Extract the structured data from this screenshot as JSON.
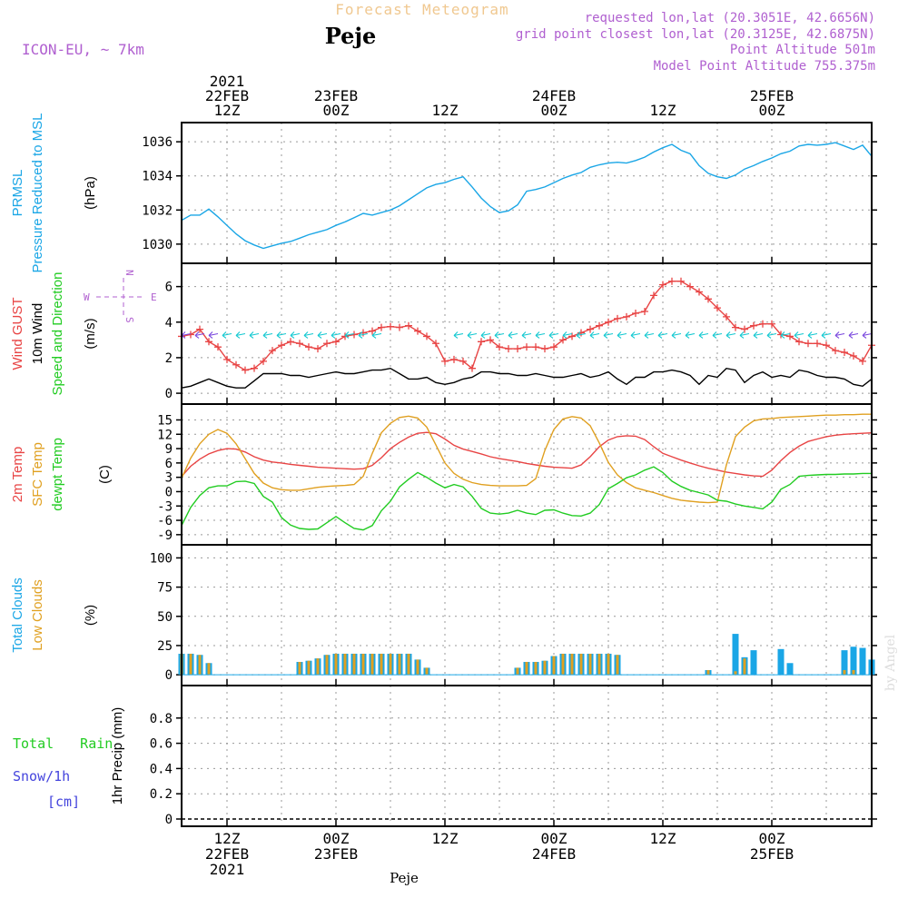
{
  "header": {
    "title": "Forecast Meteogram",
    "location": "Peje",
    "model": "ICON-EU, ~ 7km",
    "requested": "requested lon,lat (20.3051E, 42.6656N)",
    "gridpoint": "grid point closest lon,lat (20.3125E, 42.6875N)",
    "altitude": "Point Altitude 501m",
    "model_altitude": "Model Point Altitude 755.375m",
    "credit": "by Angel",
    "footer_location": "Peje"
  },
  "colors": {
    "pressure": "#1aa6e6",
    "gust": "#e84444",
    "wind": "#000000",
    "wind_arrows": "#10c8d0",
    "temp2m": "#e84444",
    "sfc": "#e0a020",
    "dewpt": "#22cc22",
    "total_clouds": "#1aa6e6",
    "low_clouds": "#e0a020",
    "rain": "#22cc22",
    "snow": "#4444dd",
    "title": "#f0c890",
    "info": "#b060d0"
  },
  "time_axis": {
    "top": [
      {
        "hour": 12,
        "lines": [
          "2021",
          "22FEB",
          "12Z"
        ]
      },
      {
        "hour": 24,
        "lines": [
          "23FEB",
          "00Z"
        ]
      },
      {
        "hour": 36,
        "lines": [
          "12Z"
        ]
      },
      {
        "hour": 48,
        "lines": [
          "24FEB",
          "00Z"
        ]
      },
      {
        "hour": 60,
        "lines": [
          "12Z"
        ]
      },
      {
        "hour": 72,
        "lines": [
          "25FEB",
          "00Z"
        ]
      }
    ],
    "bottom": [
      {
        "hour": 12,
        "lines": [
          "12Z",
          "22FEB",
          "2021"
        ]
      },
      {
        "hour": 24,
        "lines": [
          "00Z",
          "23FEB"
        ]
      },
      {
        "hour": 36,
        "lines": [
          "12Z"
        ]
      },
      {
        "hour": 48,
        "lines": [
          "00Z",
          "24FEB"
        ]
      },
      {
        "hour": 60,
        "lines": [
          "12Z"
        ]
      },
      {
        "hour": 72,
        "lines": [
          "00Z",
          "25FEB"
        ]
      }
    ]
  },
  "compass": {
    "n": "N",
    "s": "S",
    "e": "E",
    "w": "W"
  },
  "chart_data": [
    {
      "type": "line",
      "ylabels": [
        "PRMSL",
        "Pressure Reduced to MSL"
      ],
      "unit": "(hPa)",
      "ylim": [
        1029.3,
        1036.7
      ],
      "yticks": [
        1030,
        1032,
        1034,
        1036
      ],
      "grid": true,
      "x": [
        7,
        8,
        9,
        10,
        11,
        12,
        13,
        14,
        15,
        16,
        17,
        18,
        19,
        20,
        21,
        22,
        23,
        24,
        25,
        26,
        27,
        28,
        29,
        30,
        31,
        32,
        33,
        34,
        35,
        36,
        37,
        38,
        39,
        40,
        41,
        42,
        43,
        44,
        45,
        46,
        47,
        48,
        49,
        50,
        51,
        52,
        53,
        54,
        55,
        56,
        57,
        58,
        59,
        60,
        61,
        62,
        63,
        64,
        65,
        66,
        67,
        68,
        69,
        70,
        71,
        72,
        73,
        74,
        75,
        76,
        77,
        78,
        79,
        80,
        81,
        82,
        83
      ],
      "series": [
        {
          "name": "",
          "values": [
            1031.4,
            1031.7,
            1031.7,
            1032.05,
            1031.6,
            1031.1,
            1030.6,
            1030.2,
            1029.95,
            1029.75,
            1029.9,
            1030.05,
            1030.15,
            1030.35,
            1030.55,
            1030.7,
            1030.85,
            1031.1,
            1031.3,
            1031.55,
            1031.8,
            1031.7,
            1031.85,
            1032.0,
            1032.25,
            1032.6,
            1032.95,
            1033.3,
            1033.5,
            1033.6,
            1033.8,
            1033.95,
            1033.35,
            1032.7,
            1032.2,
            1031.85,
            1031.95,
            1032.3,
            1033.1,
            1033.2,
            1033.35,
            1033.6,
            1033.85,
            1034.05,
            1034.2,
            1034.5,
            1034.65,
            1034.75,
            1034.8,
            1034.75,
            1034.9,
            1035.1,
            1035.4,
            1035.65,
            1035.85,
            1035.5,
            1035.3,
            1034.6,
            1034.15,
            1033.95,
            1033.85,
            1034.05,
            1034.4,
            1034.6,
            1034.85,
            1035.05,
            1035.3,
            1035.45,
            1035.75,
            1035.85,
            1035.8,
            1035.85,
            1035.95,
            1035.75,
            1035.55,
            1035.8,
            1035.15
          ]
        }
      ]
    },
    {
      "type": "line",
      "ylabels": [
        "Wind GUST",
        "10m Wind",
        "Speed and Direction"
      ],
      "unit": "(m/s)",
      "ylim": [
        -0.2,
        6.9
      ],
      "yticks": [
        0,
        2,
        4,
        6
      ],
      "grid": true,
      "x": [
        7,
        8,
        9,
        10,
        11,
        12,
        13,
        14,
        15,
        16,
        17,
        18,
        19,
        20,
        21,
        22,
        23,
        24,
        25,
        26,
        27,
        28,
        29,
        30,
        31,
        32,
        33,
        34,
        35,
        36,
        37,
        38,
        39,
        40,
        41,
        42,
        43,
        44,
        45,
        46,
        47,
        48,
        49,
        50,
        51,
        52,
        53,
        54,
        55,
        56,
        57,
        58,
        59,
        60,
        61,
        62,
        63,
        64,
        65,
        66,
        67,
        68,
        69,
        70,
        71,
        72,
        73,
        74,
        75,
        76,
        77,
        78,
        79,
        80,
        81,
        82,
        83
      ],
      "series": [
        {
          "name": "Wind GUST",
          "values": [
            3.2,
            3.3,
            3.6,
            2.9,
            2.6,
            1.9,
            1.6,
            1.3,
            1.4,
            1.8,
            2.4,
            2.7,
            2.9,
            2.8,
            2.6,
            2.5,
            2.8,
            2.9,
            3.2,
            3.3,
            3.4,
            3.5,
            3.7,
            3.75,
            3.7,
            3.8,
            3.5,
            3.2,
            2.8,
            1.8,
            1.9,
            1.8,
            1.4,
            2.9,
            3.0,
            2.6,
            2.5,
            2.5,
            2.6,
            2.6,
            2.5,
            2.6,
            3.0,
            3.2,
            3.4,
            3.6,
            3.8,
            4.0,
            4.2,
            4.3,
            4.5,
            4.6,
            5.5,
            6.1,
            6.3,
            6.3,
            6.0,
            5.7,
            5.3,
            4.8,
            4.3,
            3.7,
            3.6,
            3.8,
            3.9,
            3.9,
            3.3,
            3.2,
            2.9,
            2.8,
            2.8,
            2.7,
            2.4,
            2.3,
            2.1,
            1.8,
            2.7
          ]
        },
        {
          "name": "10m Wind",
          "values": [
            0.3,
            0.4,
            0.6,
            0.8,
            0.6,
            0.4,
            0.3,
            0.3,
            0.7,
            1.1,
            1.1,
            1.1,
            1.0,
            1.0,
            0.9,
            1.0,
            1.1,
            1.2,
            1.1,
            1.1,
            1.2,
            1.3,
            1.3,
            1.4,
            1.1,
            0.8,
            0.8,
            0.9,
            0.6,
            0.5,
            0.6,
            0.8,
            0.9,
            1.2,
            1.2,
            1.1,
            1.1,
            1.0,
            1.0,
            1.1,
            1.0,
            0.9,
            0.9,
            1.0,
            1.1,
            0.9,
            1.0,
            1.2,
            0.8,
            0.5,
            0.9,
            0.9,
            1.2,
            1.2,
            1.3,
            1.2,
            1.0,
            0.5,
            1.0,
            0.9,
            1.4,
            1.3,
            0.6,
            1.0,
            1.2,
            0.9,
            1.0,
            0.9,
            1.3,
            1.2,
            1.0,
            0.9,
            0.9,
            0.8,
            0.5,
            0.4,
            0.8
          ]
        }
      ]
    },
    {
      "type": "line",
      "ylabels": [
        "2m Temp",
        "SFC Temp",
        "dewpt Temp"
      ],
      "unit": "(C)",
      "ylim": [
        -9.6,
        16.8
      ],
      "yticks": [
        -9,
        -6,
        -3,
        0,
        3,
        6,
        9,
        12,
        15
      ],
      "grid": true,
      "x": [
        7,
        8,
        9,
        10,
        11,
        12,
        13,
        14,
        15,
        16,
        17,
        18,
        19,
        20,
        21,
        22,
        23,
        24,
        25,
        26,
        27,
        28,
        29,
        30,
        31,
        32,
        33,
        34,
        35,
        36,
        37,
        38,
        39,
        40,
        41,
        42,
        43,
        44,
        45,
        46,
        47,
        48,
        49,
        50,
        51,
        52,
        53,
        54,
        55,
        56,
        57,
        58,
        59,
        60,
        61,
        62,
        63,
        64,
        65,
        66,
        67,
        68,
        69,
        70,
        71,
        72,
        73,
        74,
        75,
        76,
        77,
        78,
        79,
        80,
        81,
        82,
        83
      ],
      "series": [
        {
          "name": "2m Temp",
          "values": [
            3.2,
            5.3,
            6.8,
            7.9,
            8.6,
            9.0,
            8.9,
            8.3,
            7.3,
            6.6,
            6.2,
            6.0,
            5.7,
            5.5,
            5.3,
            5.1,
            5.0,
            4.9,
            4.8,
            4.7,
            4.8,
            5.5,
            7.1,
            9.0,
            10.3,
            11.4,
            12.2,
            12.4,
            12.1,
            11.0,
            9.7,
            8.9,
            8.4,
            7.9,
            7.3,
            6.9,
            6.6,
            6.3,
            5.9,
            5.6,
            5.3,
            5.1,
            5.0,
            4.9,
            5.6,
            7.3,
            9.4,
            10.8,
            11.5,
            11.7,
            11.6,
            10.9,
            9.4,
            8.0,
            7.3,
            6.6,
            6.0,
            5.4,
            4.9,
            4.5,
            4.1,
            3.8,
            3.5,
            3.3,
            3.2,
            4.5,
            6.5,
            8.2,
            9.5,
            10.5,
            11.0,
            11.5,
            11.8,
            12.0,
            12.1,
            12.2,
            12.3
          ]
        },
        {
          "name": "SFC Temp",
          "values": [
            2.8,
            7.0,
            10.0,
            12.0,
            13.0,
            12.2,
            10.0,
            6.9,
            3.8,
            1.8,
            0.8,
            0.4,
            0.3,
            0.3,
            0.6,
            0.9,
            1.1,
            1.2,
            1.3,
            1.5,
            3.2,
            8.0,
            12.3,
            14.3,
            15.5,
            15.8,
            15.4,
            13.5,
            9.8,
            6.0,
            3.8,
            2.6,
            1.9,
            1.5,
            1.3,
            1.2,
            1.2,
            1.2,
            1.3,
            2.7,
            8.6,
            13.0,
            15.2,
            15.7,
            15.4,
            13.8,
            10.2,
            6.1,
            3.5,
            1.9,
            0.8,
            0.3,
            -0.2,
            -0.8,
            -1.4,
            -1.8,
            -2.0,
            -2.2,
            -2.3,
            -2.2,
            5.6,
            11.5,
            13.5,
            14.8,
            15.2,
            15.3,
            15.5,
            15.6,
            15.7,
            15.8,
            15.9,
            16.0,
            16.0,
            16.1,
            16.1,
            16.2,
            16.2
          ]
        },
        {
          "name": "dewpt Temp",
          "values": [
            -7.1,
            -3.3,
            -0.8,
            0.8,
            1.2,
            1.2,
            2.1,
            2.2,
            1.7,
            -1.0,
            -2.2,
            -5.4,
            -7.0,
            -7.7,
            -7.9,
            -7.8,
            -6.5,
            -5.2,
            -6.5,
            -7.7,
            -8.0,
            -7.1,
            -4.0,
            -2.0,
            1.0,
            2.6,
            4.0,
            3.0,
            1.8,
            0.8,
            1.5,
            1.0,
            -1.0,
            -3.5,
            -4.5,
            -4.7,
            -4.5,
            -3.9,
            -4.5,
            -4.8,
            -3.9,
            -3.8,
            -4.5,
            -5.0,
            -5.1,
            -4.5,
            -2.7,
            0.6,
            1.7,
            2.9,
            3.5,
            4.5,
            5.2,
            4.0,
            2.2,
            1.1,
            0.3,
            -0.2,
            -0.7,
            -1.8,
            -2.0,
            -2.6,
            -3.0,
            -3.3,
            -3.6,
            -2.2,
            0.5,
            1.5,
            3.2,
            3.4,
            3.5,
            3.6,
            3.6,
            3.7,
            3.7,
            3.8,
            3.8
          ]
        }
      ]
    },
    {
      "type": "bar",
      "ylabels": [
        "Total Clouds",
        "Low Clouds"
      ],
      "unit": "(%)",
      "ylim": [
        -3,
        105
      ],
      "yticks": [
        0,
        25,
        50,
        75,
        100
      ],
      "grid": true,
      "x": [
        7,
        8,
        9,
        10,
        11,
        12,
        13,
        14,
        15,
        16,
        17,
        18,
        19,
        20,
        21,
        22,
        23,
        24,
        25,
        26,
        27,
        28,
        29,
        30,
        31,
        32,
        33,
        34,
        35,
        36,
        37,
        38,
        39,
        40,
        41,
        42,
        43,
        44,
        45,
        46,
        47,
        48,
        49,
        50,
        51,
        52,
        53,
        54,
        55,
        56,
        57,
        58,
        59,
        60,
        61,
        62,
        63,
        64,
        65,
        66,
        67,
        68,
        69,
        70,
        71,
        72,
        73,
        74,
        75,
        76,
        77,
        78,
        79,
        80,
        81,
        82,
        83
      ],
      "series": [
        {
          "name": "Total Clouds",
          "values": [
            18,
            18,
            17,
            10,
            0,
            0,
            0,
            0,
            0,
            0,
            0,
            0,
            0,
            11,
            12,
            14,
            17,
            18,
            18,
            18,
            18,
            18,
            18,
            18,
            18,
            18,
            13,
            6,
            0,
            0,
            0,
            0,
            0,
            0,
            0,
            0,
            0,
            6,
            11,
            11,
            12,
            16,
            18,
            18,
            18,
            18,
            18,
            18,
            17,
            0,
            0,
            0,
            0,
            0,
            0,
            0,
            0,
            0,
            4,
            0,
            0,
            35,
            15,
            21,
            0,
            0,
            22,
            10,
            0,
            0,
            0,
            0,
            0,
            21,
            24,
            23,
            13
          ]
        },
        {
          "name": "Low Clouds",
          "values": [
            18,
            18,
            17,
            10,
            0,
            0,
            0,
            0,
            0,
            0,
            0,
            0,
            0,
            11,
            12,
            14,
            17,
            18,
            18,
            18,
            18,
            18,
            18,
            18,
            18,
            18,
            13,
            6,
            0,
            0,
            0,
            0,
            0,
            0,
            0,
            0,
            0,
            6,
            11,
            11,
            12,
            16,
            18,
            18,
            18,
            18,
            18,
            18,
            17,
            0,
            0,
            0,
            0,
            0,
            0,
            0,
            0,
            0,
            4,
            0,
            0,
            3,
            14,
            0,
            0,
            0,
            0,
            0,
            0,
            0,
            0,
            0,
            0,
            4,
            4,
            0,
            0
          ]
        }
      ]
    },
    {
      "type": "bar",
      "ylabels": [
        "Total Rain",
        "Snow/1h",
        "[cm]"
      ],
      "unit": "1hr Precip (mm)",
      "ylim": [
        0,
        1.0
      ],
      "yticks": [
        0,
        0.2,
        0.4,
        0.6,
        0.8
      ],
      "grid": true,
      "x": [
        7,
        83
      ],
      "series": [
        {
          "name": "Total Rain",
          "values": [
            0,
            0
          ]
        },
        {
          "name": "Snow/1h",
          "values": [
            0,
            0
          ]
        }
      ]
    }
  ]
}
